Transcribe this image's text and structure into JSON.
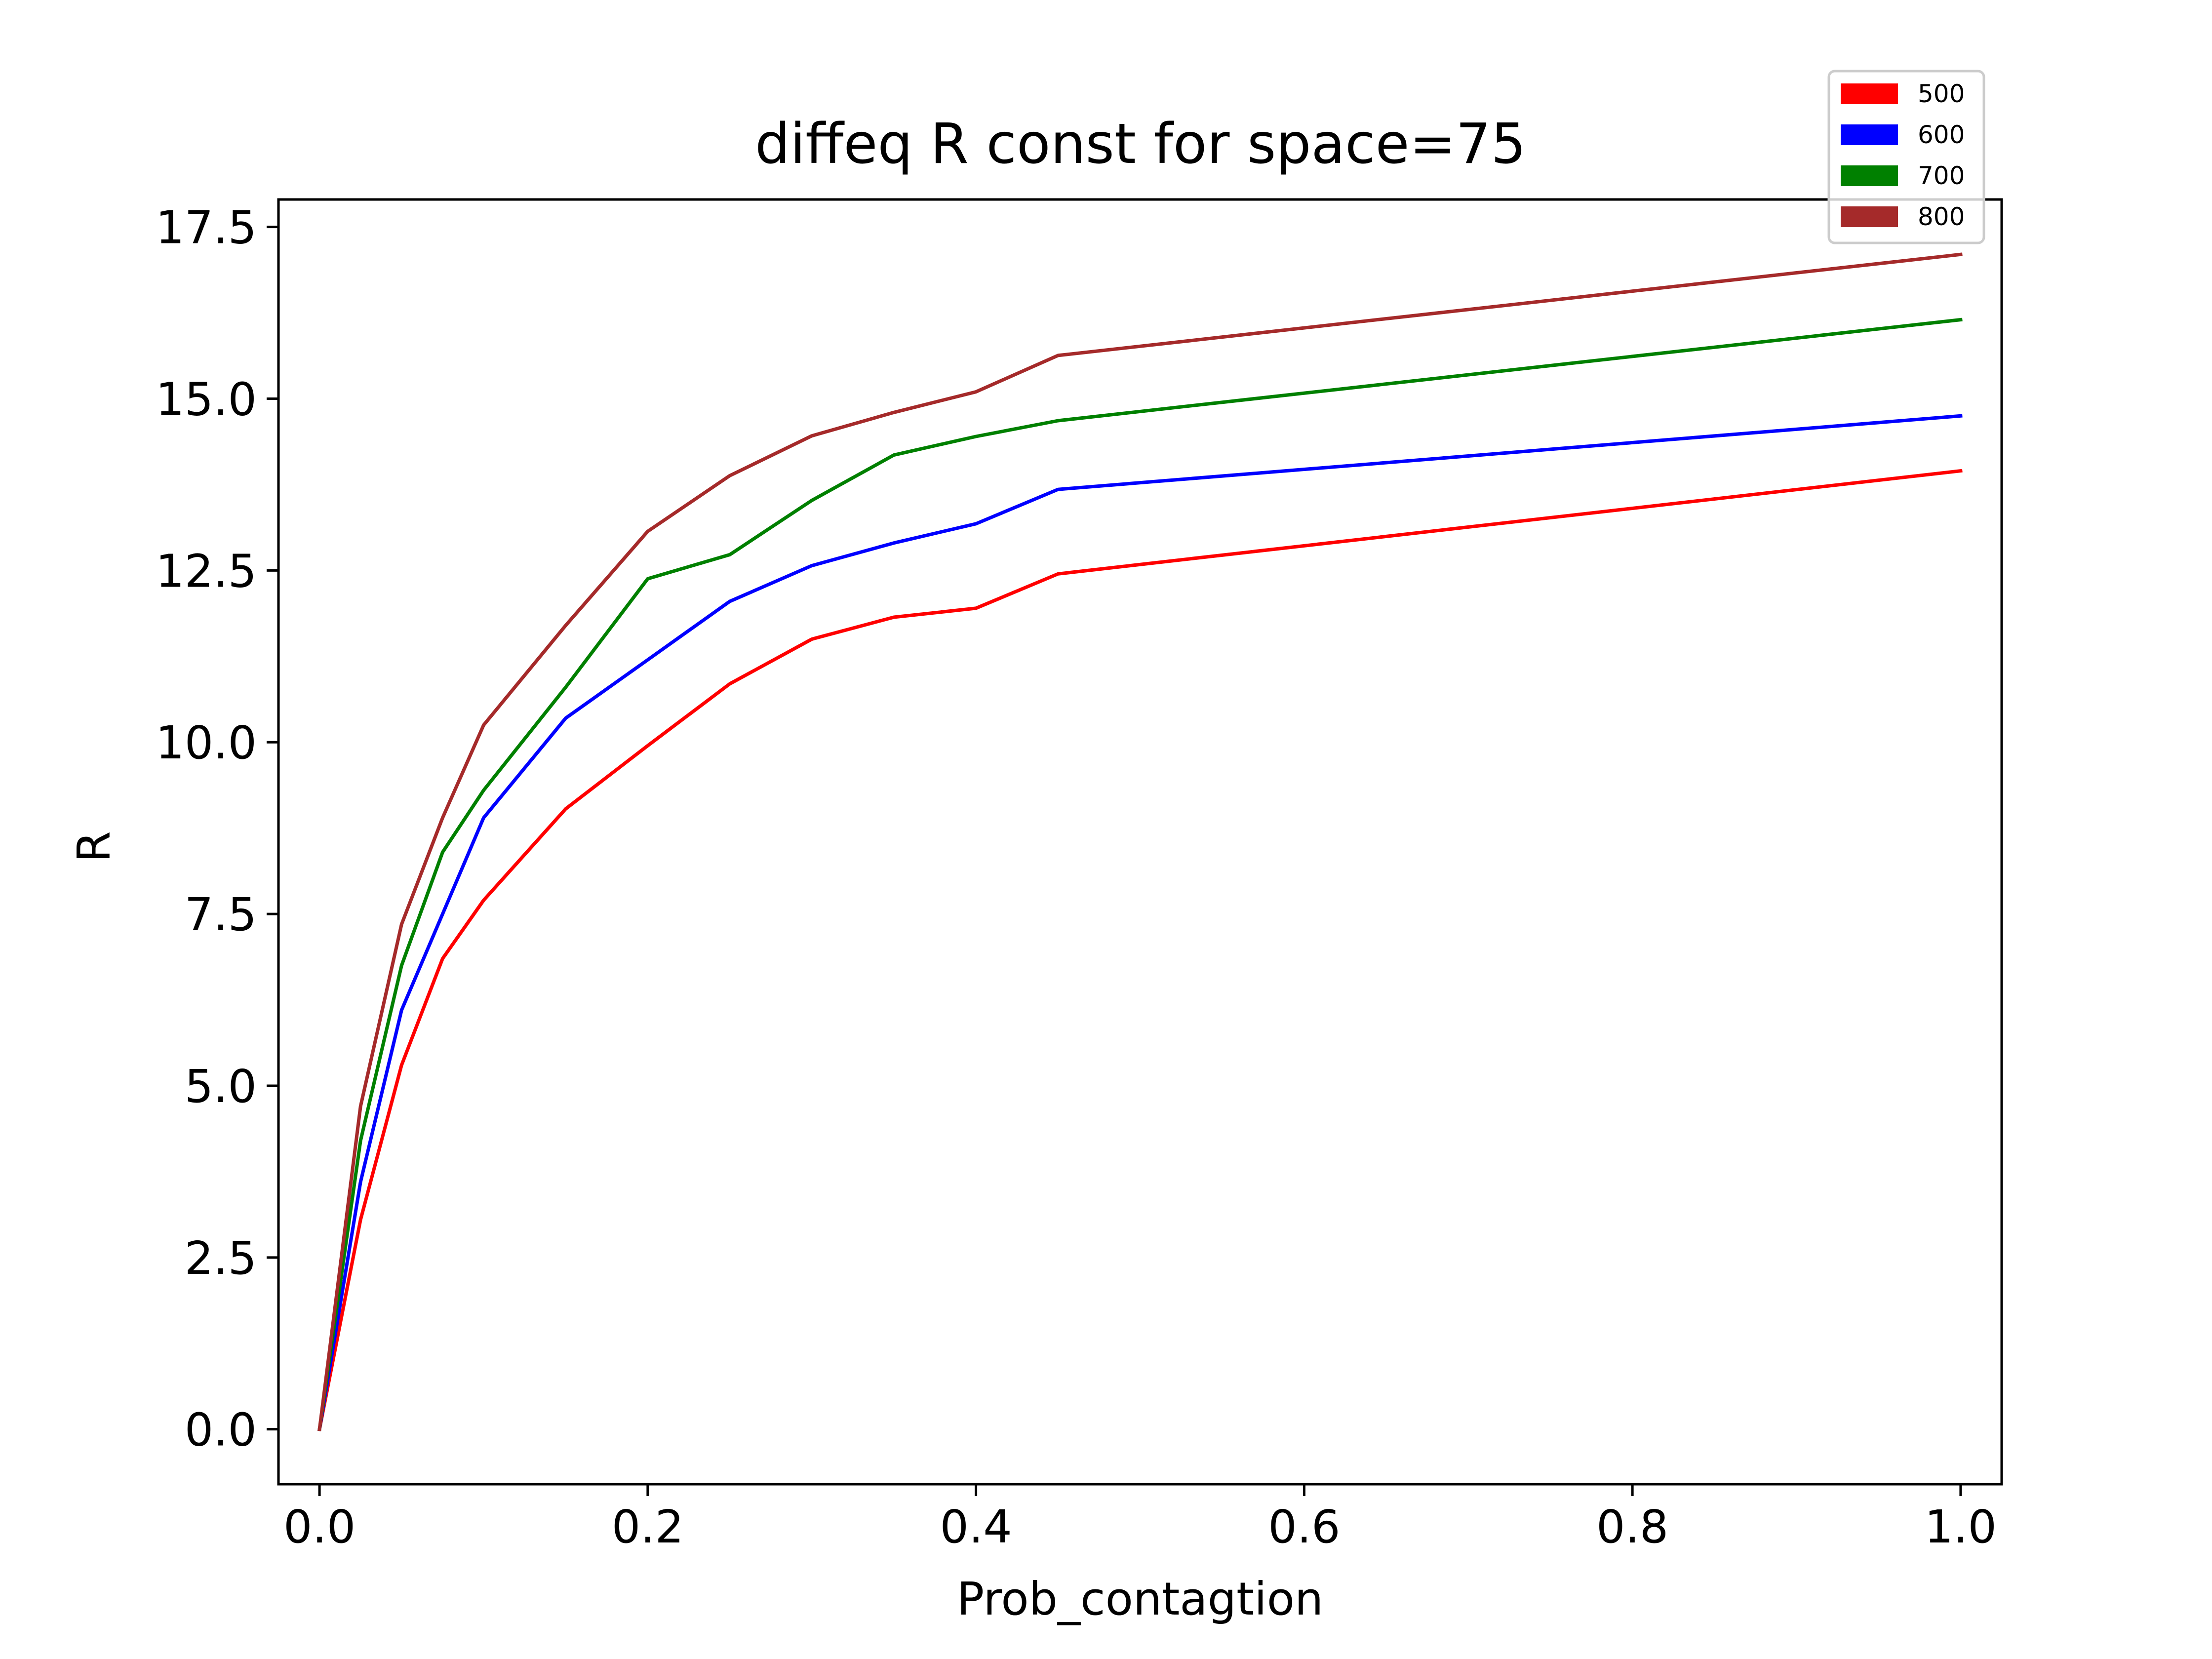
{
  "chart_data": {
    "type": "line",
    "title": "diffeq R const for space=75",
    "xlabel": "Prob_contagtion",
    "ylabel": "R",
    "xlim": [
      -0.025,
      1.025
    ],
    "ylim": [
      -0.8,
      17.9
    ],
    "xticks": [
      0.0,
      0.2,
      0.4,
      0.6,
      0.8,
      1.0
    ],
    "xtick_labels": [
      "0.0",
      "0.2",
      "0.4",
      "0.6",
      "0.8",
      "1.0"
    ],
    "yticks": [
      0.0,
      2.5,
      5.0,
      7.5,
      10.0,
      12.5,
      15.0,
      17.5
    ],
    "ytick_labels": [
      "0.0",
      "2.5",
      "5.0",
      "7.5",
      "10.0",
      "12.5",
      "15.0",
      "17.5"
    ],
    "grid": false,
    "legend": "top-right",
    "x": [
      0.0,
      0.025,
      0.05,
      0.075,
      0.1,
      0.15,
      0.2,
      0.25,
      0.3,
      0.35,
      0.4,
      0.45,
      1.0
    ],
    "series": [
      {
        "name": "500",
        "color": "#ff0000",
        "values": [
          0.0,
          3.05,
          5.3,
          6.85,
          7.7,
          9.03,
          9.95,
          10.85,
          11.5,
          11.82,
          11.95,
          12.45,
          13.95
        ]
      },
      {
        "name": "600",
        "color": "#0000ff",
        "values": [
          0.0,
          3.6,
          6.1,
          7.5,
          8.9,
          10.35,
          11.2,
          12.05,
          12.57,
          12.9,
          13.18,
          13.68,
          14.75
        ]
      },
      {
        "name": "700",
        "color": "#008000",
        "values": [
          0.0,
          4.2,
          6.75,
          8.4,
          9.3,
          10.8,
          12.38,
          12.73,
          13.52,
          14.18,
          14.45,
          14.68,
          16.15
        ]
      },
      {
        "name": "800",
        "color": "#a52a2a",
        "values": [
          0.0,
          4.7,
          7.35,
          8.9,
          10.25,
          11.7,
          13.07,
          13.88,
          14.46,
          14.8,
          15.1,
          15.63,
          17.1
        ]
      }
    ]
  }
}
